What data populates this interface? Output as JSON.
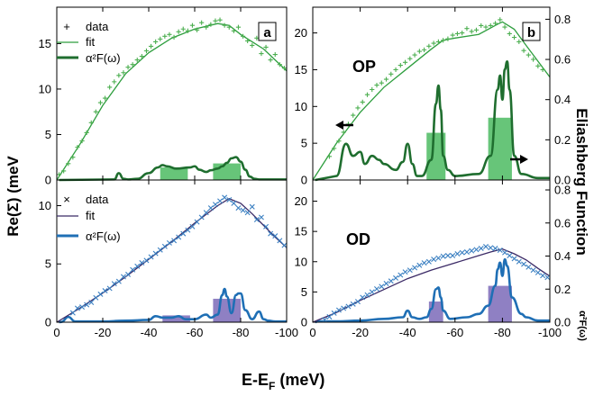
{
  "figure": {
    "xlabel_main": "E-E",
    "xlabel_sub": "F",
    "xlabel_unit": " (meV)",
    "ylabel_left": "Re(Σ) (meV",
    "ylabel_right": "Eliashberg Function",
    "ylabel_right_sym": "α²F(ω)",
    "legend_green": [
      "data",
      "fit",
      "α²F(ω)"
    ],
    "legend_blue": [
      "data",
      "fit",
      "α²F(ω)"
    ],
    "panel_a_tag": "a",
    "panel_b_tag": "b",
    "label_op": "OP",
    "label_od": "OD",
    "x_ticks": [
      "0",
      "-20",
      "-40",
      "-60",
      "-80",
      "-100"
    ],
    "y_ticks_a": [
      "0",
      "5",
      "10",
      "15"
    ],
    "y_ticks_c": [
      "0",
      "5",
      "10"
    ],
    "y_ticks_left_right": [
      "0",
      "5",
      "10",
      "15",
      "20"
    ],
    "y_ticks_right": [
      "0.0",
      "0.2",
      "0.4",
      "0.6",
      "0.8"
    ],
    "colors": {
      "green_data": "#4caf50",
      "green_fit": "#2e9e3e",
      "green_a2f": "#1f6e2f",
      "green_bar": "#4cbb62",
      "blue_data": "#3a7fc1",
      "blue_fit": "#3b2a66",
      "blue_a2f": "#1f6fb5",
      "blue_bar": "#7b6ab8"
    }
  },
  "chart_data": [
    {
      "panel": "a",
      "type": "scatter",
      "xlabel": "E-EF (meV)",
      "ylabel": "Re(Σ) (meV",
      "xlim": [
        0,
        -100
      ],
      "ylim": [
        0,
        19
      ],
      "series": [
        {
          "name": "data",
          "marker": "+",
          "x": [
            -1,
            -3,
            -5,
            -7,
            -9,
            -11,
            -13,
            -15,
            -17,
            -19,
            -21,
            -23,
            -25,
            -27,
            -29,
            -31,
            -33,
            -35,
            -37,
            -39,
            -41,
            -43,
            -45,
            -47,
            -49,
            -51,
            -53,
            -55,
            -57,
            -59,
            -61,
            -63,
            -65,
            -67,
            -69,
            -71,
            -73,
            -75,
            -77,
            -79,
            -81,
            -83,
            -85,
            -87,
            -89,
            -91,
            -93,
            -95,
            -97,
            -99
          ],
          "y": [
            0.6,
            1.0,
            1.8,
            2.5,
            3.6,
            4.3,
            5.2,
            6.3,
            7.5,
            8.5,
            9.0,
            10.2,
            10.8,
            11.5,
            11.8,
            12.4,
            12.7,
            13.2,
            13.6,
            14.2,
            14.7,
            15.2,
            15.5,
            15.8,
            16.0,
            15.7,
            16.3,
            16.6,
            16.4,
            17.0,
            16.5,
            17.3,
            16.8,
            17.1,
            17.5,
            17.6,
            17.0,
            16.8,
            16.4,
            16.8,
            15.8,
            15.3,
            14.8,
            15.6,
            13.9,
            14.6,
            13.2,
            13.8,
            12.7,
            12.3
          ]
        },
        {
          "name": "fit",
          "type": "line",
          "x": [
            0,
            -10,
            -20,
            -30,
            -40,
            -50,
            -60,
            -70,
            -75,
            -80,
            -85,
            -90,
            -95,
            -100
          ],
          "y": [
            0,
            3.9,
            8.2,
            11.7,
            14.0,
            15.6,
            16.6,
            17.2,
            17.0,
            16.0,
            15.2,
            14.4,
            13.2,
            12.0
          ]
        }
      ],
      "a2f": {
        "name": "α²F(ω)",
        "x": [
          -25,
          -27,
          -29,
          -31,
          -35,
          -40,
          -44,
          -46,
          -48,
          -52,
          -58,
          -60,
          -62,
          -65,
          -67,
          -70,
          -72,
          -74,
          -76,
          -78,
          -80,
          -82,
          -84,
          -86,
          -88,
          -90,
          -95,
          -100
        ],
        "y": [
          0.005,
          0.06,
          0.01,
          0.005,
          0.01,
          0.06,
          0.11,
          0.13,
          0.12,
          0.1,
          0.11,
          0.12,
          0.09,
          0.07,
          0.085,
          0.1,
          0.12,
          0.15,
          0.19,
          0.2,
          0.16,
          0.09,
          0.03,
          0.01,
          0.005,
          0.005,
          0.005,
          0.005
        ]
      },
      "bars": [
        {
          "x0": -45,
          "x1": -57,
          "value": 0.11
        },
        {
          "x0": -68,
          "x1": -80,
          "value": 0.145
        }
      ]
    },
    {
      "panel": "b",
      "label": "OP",
      "type": "scatter",
      "xlim": [
        0,
        -100
      ],
      "ylim": [
        0,
        23.5
      ],
      "ylim_right": [
        0,
        0.86
      ],
      "series": [
        {
          "name": "data",
          "marker": "+",
          "x": [
            -7,
            -9,
            -11,
            -13,
            -15,
            -17,
            -19,
            -21,
            -23,
            -25,
            -27,
            -29,
            -31,
            -33,
            -35,
            -37,
            -39,
            -41,
            -43,
            -45,
            -47,
            -49,
            -51,
            -53,
            -55,
            -57,
            -59,
            -61,
            -63,
            -65,
            -67,
            -69,
            -71,
            -73,
            -75,
            -77,
            -79,
            -81,
            -83,
            -85,
            -87,
            -89,
            -91,
            -93,
            -95,
            -97
          ],
          "y": [
            3.2,
            4.3,
            5.3,
            6.5,
            7.6,
            8.8,
            9.8,
            10.6,
            11.6,
            12.3,
            12.9,
            13.2,
            13.7,
            14.4,
            15.0,
            15.6,
            16.0,
            16.5,
            17.0,
            17.5,
            17.7,
            18.2,
            18.6,
            18.8,
            19.0,
            19.2,
            19.7,
            19.9,
            20.0,
            20.6,
            20.2,
            20.4,
            21.0,
            20.8,
            21.0,
            21.3,
            21.8,
            20.8,
            19.9,
            19.4,
            18.8,
            17.6,
            17.0,
            16.4,
            15.5,
            15.0
          ]
        },
        {
          "name": "fit",
          "type": "line",
          "x": [
            0,
            -10,
            -20,
            -30,
            -40,
            -50,
            -55,
            -60,
            -70,
            -78,
            -80,
            -85,
            -90,
            -100
          ],
          "y": [
            0,
            5.0,
            9.2,
            12.6,
            15.2,
            17.8,
            19.0,
            19.3,
            19.8,
            21.2,
            21.5,
            20.5,
            18.3,
            14.0
          ]
        }
      ],
      "a2f": {
        "name": "α²F(ω)",
        "x": [
          -10,
          -14,
          -17,
          -20,
          -22,
          -25,
          -28,
          -30,
          -35,
          -38,
          -40,
          -42,
          -44,
          -46,
          -50,
          -52,
          -53,
          -54,
          -55,
          -57,
          -60,
          -70,
          -75,
          -78,
          -79,
          -80,
          -81,
          -82,
          -83,
          -85,
          -88,
          -95,
          -100
        ],
        "y": [
          0.02,
          0.18,
          0.12,
          0.14,
          0.08,
          0.12,
          0.1,
          0.08,
          0.05,
          0.09,
          0.18,
          0.08,
          0.02,
          0.02,
          0.1,
          0.38,
          0.47,
          0.35,
          0.12,
          0.05,
          0.02,
          0.03,
          0.12,
          0.45,
          0.52,
          0.4,
          0.55,
          0.59,
          0.45,
          0.12,
          0.03,
          0.01,
          0.01
        ]
      },
      "bars": [
        {
          "x0": -48,
          "x1": -56,
          "value": 0.235
        },
        {
          "x0": -74,
          "x1": -84,
          "value": 0.31
        }
      ]
    },
    {
      "panel": "c",
      "type": "scatter",
      "xlim": [
        0,
        -100
      ],
      "ylim": [
        0,
        12.2
      ],
      "series": [
        {
          "name": "data",
          "marker": "x",
          "x": [
            -7,
            -9,
            -11,
            -13,
            -15,
            -17,
            -19,
            -21,
            -23,
            -25,
            -27,
            -29,
            -31,
            -33,
            -35,
            -37,
            -39,
            -41,
            -43,
            -45,
            -47,
            -49,
            -51,
            -53,
            -55,
            -57,
            -59,
            -61,
            -63,
            -65,
            -67,
            -69,
            -71,
            -73,
            -75,
            -77,
            -79,
            -81,
            -83,
            -85,
            -87,
            -89,
            -91,
            -93,
            -95,
            -97,
            -99
          ],
          "y": [
            0.8,
            1.2,
            1.3,
            1.5,
            1.7,
            2.1,
            2.4,
            2.7,
            2.9,
            3.3,
            3.5,
            3.9,
            4.1,
            4.5,
            4.8,
            5.1,
            5.3,
            5.6,
            5.9,
            6.2,
            6.5,
            6.8,
            7.0,
            7.3,
            7.6,
            7.9,
            8.2,
            8.6,
            9.0,
            9.4,
            9.8,
            10.1,
            10.4,
            10.7,
            10.5,
            10.2,
            9.8,
            9.6,
            9.4,
            9.9,
            8.8,
            9.0,
            8.2,
            7.6,
            7.4,
            7.0,
            6.6
          ]
        },
        {
          "name": "fit",
          "type": "line",
          "x": [
            0,
            -10,
            -20,
            -30,
            -40,
            -50,
            -60,
            -70,
            -75,
            -80,
            -85,
            -90,
            -95,
            -100
          ],
          "y": [
            0,
            1.2,
            2.5,
            3.9,
            5.4,
            6.9,
            8.5,
            10.0,
            10.6,
            10.2,
            9.3,
            8.3,
            7.3,
            6.4
          ]
        }
      ],
      "a2f": {
        "name": "α²F(ω)",
        "x": [
          -2,
          -5,
          -8,
          -20,
          -30,
          -40,
          -43,
          -46,
          -50,
          -53,
          -56,
          -60,
          -65,
          -67,
          -70,
          -72,
          -73,
          -74,
          -76,
          -78,
          -79,
          -80,
          -82,
          -85,
          -88,
          -90,
          -92,
          -95,
          -100
        ],
        "y": [
          0.002,
          0.035,
          0.005,
          0.005,
          0.01,
          0.015,
          0.04,
          0.03,
          0.03,
          0.04,
          0.02,
          0.02,
          0.05,
          0.03,
          0.05,
          0.18,
          0.22,
          0.17,
          0.06,
          0.18,
          0.19,
          0.19,
          0.08,
          0.02,
          0.07,
          0.02,
          0.01,
          0.005,
          0.005
        ]
      },
      "bars": [
        {
          "x0": -46,
          "x1": -58,
          "value": 0.045
        },
        {
          "x0": -68,
          "x1": -80,
          "value": 0.155
        }
      ]
    },
    {
      "panel": "d",
      "label": "OD",
      "type": "scatter",
      "xlim": [
        0,
        -100
      ],
      "ylim": [
        0,
        23.5
      ],
      "ylim_right": [
        0,
        0.86
      ],
      "series": [
        {
          "name": "data",
          "marker": "x",
          "x": [
            -5,
            -7,
            -9,
            -11,
            -13,
            -15,
            -17,
            -19,
            -21,
            -23,
            -25,
            -27,
            -29,
            -31,
            -33,
            -35,
            -37,
            -39,
            -41,
            -43,
            -45,
            -47,
            -49,
            -51,
            -53,
            -55,
            -57,
            -59,
            -61,
            -63,
            -65,
            -67,
            -69,
            -71,
            -73,
            -75,
            -77,
            -79,
            -81,
            -83,
            -85,
            -87,
            -89,
            -91,
            -93,
            -95,
            -97,
            -99
          ],
          "y": [
            0.4,
            0.9,
            1.5,
            2.0,
            2.3,
            2.6,
            3.0,
            3.4,
            4.1,
            4.5,
            5.0,
            5.5,
            5.9,
            6.4,
            6.8,
            7.3,
            7.8,
            8.3,
            8.6,
            9.0,
            9.4,
            9.8,
            10.0,
            10.4,
            10.6,
            10.9,
            11.0,
            11.0,
            11.3,
            11.5,
            11.6,
            11.8,
            12.0,
            12.2,
            12.5,
            12.3,
            12.2,
            11.9,
            11.5,
            11.0,
            10.5,
            10.0,
            9.6,
            9.1,
            8.6,
            8.2,
            7.7,
            7.4
          ]
        },
        {
          "name": "fit",
          "type": "line",
          "x": [
            0,
            -10,
            -20,
            -30,
            -40,
            -50,
            -60,
            -70,
            -75,
            -80,
            -85,
            -90,
            -95,
            -100
          ],
          "y": [
            0,
            1.6,
            3.6,
            5.4,
            7.2,
            8.6,
            9.8,
            11.0,
            11.6,
            12.1,
            11.3,
            10.3,
            8.9,
            7.6
          ]
        }
      ],
      "a2f": {
        "name": "α²F(ω)",
        "x": [
          -2,
          -5,
          -10,
          -20,
          -30,
          -38,
          -40,
          -42,
          -45,
          -48,
          -50,
          -52,
          -53,
          -54,
          -55,
          -58,
          -65,
          -70,
          -74,
          -77,
          -78,
          -79,
          -80,
          -81,
          -82,
          -84,
          -88,
          -90,
          -95,
          -100
        ],
        "y": [
          0.005,
          0.005,
          0.005,
          0.01,
          0.02,
          0.03,
          0.07,
          0.03,
          0.02,
          0.03,
          0.08,
          0.2,
          0.21,
          0.15,
          0.07,
          0.02,
          0.03,
          0.05,
          0.1,
          0.22,
          0.32,
          0.36,
          0.28,
          0.38,
          0.34,
          0.15,
          0.05,
          0.03,
          0.01,
          0.01
        ]
      },
      "bars": [
        {
          "x0": -49,
          "x1": -55,
          "value": 0.125
        },
        {
          "x0": -74,
          "x1": -84,
          "value": 0.22
        }
      ]
    }
  ]
}
